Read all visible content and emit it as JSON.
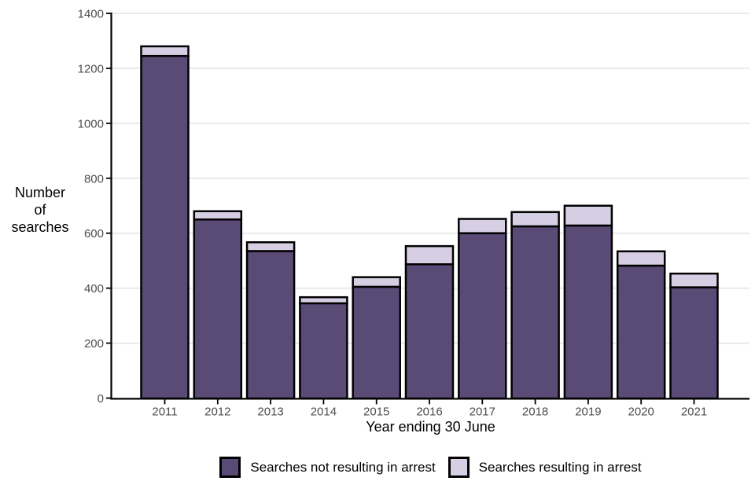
{
  "chart_data": {
    "type": "bar",
    "stacked": true,
    "title": "",
    "xlabel": "Year ending 30 June",
    "ylabel": "Number of searches",
    "categories": [
      "2011",
      "2012",
      "2013",
      "2014",
      "2015",
      "2016",
      "2017",
      "2018",
      "2019",
      "2020",
      "2021"
    ],
    "series": [
      {
        "name": "Searches not resulting in arrest",
        "color": "#5a4a76",
        "values": [
          1245,
          650,
          535,
          345,
          405,
          487,
          600,
          625,
          628,
          482,
          403
        ]
      },
      {
        "name": "Searches resulting in arrest",
        "color": "#d6cfe3",
        "values": [
          35,
          30,
          32,
          22,
          35,
          66,
          52,
          52,
          72,
          52,
          50
        ]
      }
    ],
    "stack_totals": [
      1280,
      680,
      567,
      367,
      440,
      553,
      652,
      677,
      700,
      534,
      453
    ],
    "ylim": [
      0,
      1400
    ],
    "yticks": [
      0,
      200,
      400,
      600,
      800,
      1000,
      1200,
      1400
    ],
    "grid": "horizontal",
    "legend_position": "bottom",
    "bar_outline_color": "#000000",
    "gridline_color": "#e3e3e3",
    "axis_line_color": "#000000",
    "tick_label_color": "#4d4d4d"
  }
}
